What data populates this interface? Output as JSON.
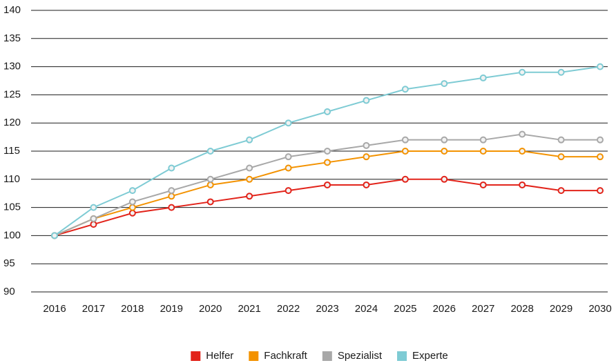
{
  "chart_data": {
    "type": "line",
    "categories": [
      "2016",
      "2017",
      "2018",
      "2019",
      "2020",
      "2021",
      "2022",
      "2023",
      "2024",
      "2025",
      "2026",
      "2027",
      "2028",
      "2029",
      "2030"
    ],
    "series": [
      {
        "name": "Helfer",
        "color": "#e2231a",
        "values": [
          100,
          102,
          104,
          105,
          106,
          107,
          108,
          109,
          109,
          110,
          110,
          109,
          109,
          108,
          108
        ]
      },
      {
        "name": "Fachkraft",
        "color": "#f39200",
        "values": [
          100,
          103,
          105,
          107,
          109,
          110,
          112,
          113,
          114,
          115,
          115,
          115,
          115,
          114,
          114
        ]
      },
      {
        "name": "Spezialist",
        "color": "#a8a8a8",
        "values": [
          100,
          103,
          106,
          108,
          110,
          112,
          114,
          115,
          116,
          117,
          117,
          117,
          118,
          117,
          117
        ]
      },
      {
        "name": "Experte",
        "color": "#7ecbd4",
        "values": [
          100,
          105,
          108,
          112,
          115,
          117,
          120,
          122,
          124,
          126,
          127,
          128,
          129,
          129,
          130
        ]
      }
    ],
    "ylim": [
      90,
      140
    ],
    "yticks": [
      90,
      95,
      100,
      105,
      110,
      115,
      120,
      125,
      130,
      135,
      140
    ],
    "grid": true,
    "legend": "bottom"
  }
}
